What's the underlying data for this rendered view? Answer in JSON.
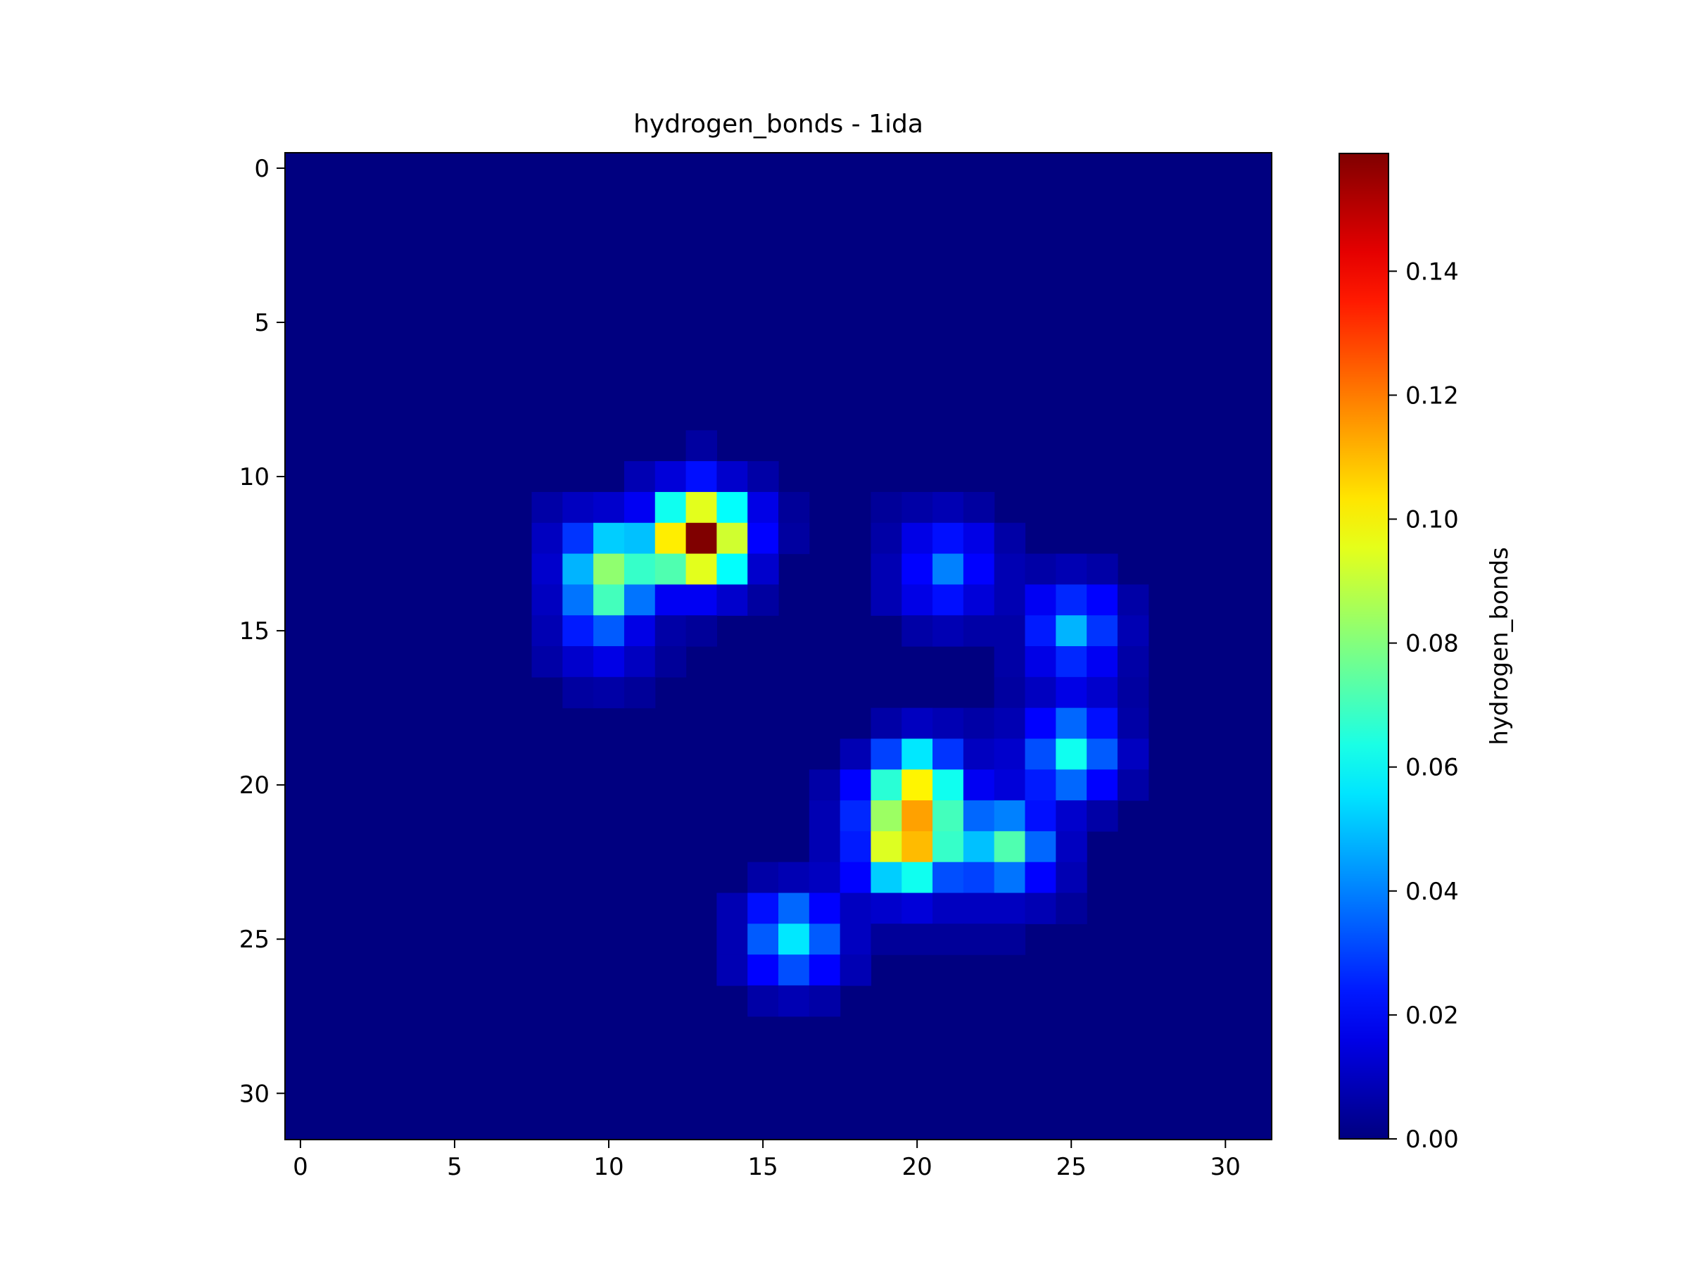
{
  "chart_data": {
    "type": "heatmap",
    "title": "hydrogen_bonds - 1ida",
    "xlabel": "",
    "ylabel": "",
    "colorbar_label": "hydrogen_bonds",
    "colormap": "jet",
    "grid": false,
    "y_axis_inverted": true,
    "x_ticks": [
      "0",
      "5",
      "10",
      "15",
      "20",
      "25",
      "30"
    ],
    "y_ticks": [
      "0",
      "5",
      "10",
      "15",
      "20",
      "25",
      "30"
    ],
    "colorbar_ticks": [
      "0.00",
      "0.02",
      "0.04",
      "0.06",
      "0.08",
      "0.10",
      "0.12",
      "0.14"
    ],
    "value_range": [
      0,
      0.159
    ],
    "n_rows": 32,
    "n_cols": 32,
    "background_value": 0.0,
    "cells": [
      [
        9,
        13,
        0.005
      ],
      [
        10,
        12,
        0.004
      ],
      [
        10,
        13,
        0.006
      ],
      [
        10,
        14,
        0.004
      ],
      [
        10,
        11,
        0.008
      ],
      [
        10,
        12,
        0.014
      ],
      [
        10,
        13,
        0.022
      ],
      [
        10,
        14,
        0.012
      ],
      [
        10,
        15,
        0.006
      ],
      [
        11,
        8,
        0.006
      ],
      [
        11,
        9,
        0.01
      ],
      [
        11,
        10,
        0.012
      ],
      [
        11,
        11,
        0.018
      ],
      [
        11,
        12,
        0.062
      ],
      [
        11,
        13,
        0.095
      ],
      [
        11,
        14,
        0.06
      ],
      [
        11,
        15,
        0.016
      ],
      [
        11,
        16,
        0.004
      ],
      [
        12,
        8,
        0.01
      ],
      [
        12,
        9,
        0.028
      ],
      [
        12,
        10,
        0.052
      ],
      [
        12,
        11,
        0.05
      ],
      [
        12,
        12,
        0.102
      ],
      [
        12,
        13,
        0.159
      ],
      [
        12,
        14,
        0.092
      ],
      [
        12,
        15,
        0.02
      ],
      [
        12,
        16,
        0.005
      ],
      [
        13,
        8,
        0.012
      ],
      [
        13,
        9,
        0.048
      ],
      [
        13,
        10,
        0.082
      ],
      [
        13,
        11,
        0.068
      ],
      [
        13,
        12,
        0.072
      ],
      [
        13,
        13,
        0.095
      ],
      [
        13,
        14,
        0.06
      ],
      [
        13,
        15,
        0.012
      ],
      [
        14,
        8,
        0.01
      ],
      [
        14,
        9,
        0.038
      ],
      [
        14,
        10,
        0.07
      ],
      [
        14,
        11,
        0.038
      ],
      [
        14,
        12,
        0.018
      ],
      [
        14,
        13,
        0.018
      ],
      [
        14,
        14,
        0.012
      ],
      [
        14,
        15,
        0.005
      ],
      [
        15,
        8,
        0.008
      ],
      [
        15,
        9,
        0.024
      ],
      [
        15,
        10,
        0.034
      ],
      [
        15,
        11,
        0.016
      ],
      [
        15,
        12,
        0.006
      ],
      [
        15,
        13,
        0.004
      ],
      [
        16,
        8,
        0.006
      ],
      [
        16,
        9,
        0.012
      ],
      [
        16,
        10,
        0.016
      ],
      [
        16,
        11,
        0.01
      ],
      [
        16,
        12,
        0.004
      ],
      [
        17,
        9,
        0.005
      ],
      [
        17,
        10,
        0.006
      ],
      [
        17,
        11,
        0.004
      ],
      [
        11,
        19,
        0.004
      ],
      [
        11,
        20,
        0.006
      ],
      [
        11,
        21,
        0.008
      ],
      [
        11,
        22,
        0.005
      ],
      [
        12,
        19,
        0.006
      ],
      [
        12,
        20,
        0.016
      ],
      [
        12,
        21,
        0.022
      ],
      [
        12,
        22,
        0.016
      ],
      [
        12,
        23,
        0.006
      ],
      [
        13,
        19,
        0.008
      ],
      [
        13,
        20,
        0.02
      ],
      [
        13,
        21,
        0.04
      ],
      [
        13,
        22,
        0.02
      ],
      [
        13,
        23,
        0.008
      ],
      [
        13,
        24,
        0.006
      ],
      [
        13,
        25,
        0.008
      ],
      [
        13,
        26,
        0.006
      ],
      [
        14,
        19,
        0.008
      ],
      [
        14,
        20,
        0.016
      ],
      [
        14,
        21,
        0.022
      ],
      [
        14,
        22,
        0.014
      ],
      [
        14,
        23,
        0.008
      ],
      [
        14,
        24,
        0.018
      ],
      [
        14,
        25,
        0.026
      ],
      [
        14,
        26,
        0.02
      ],
      [
        14,
        27,
        0.006
      ],
      [
        15,
        20,
        0.006
      ],
      [
        15,
        21,
        0.008
      ],
      [
        15,
        22,
        0.006
      ],
      [
        15,
        23,
        0.006
      ],
      [
        15,
        24,
        0.024
      ],
      [
        15,
        25,
        0.048
      ],
      [
        15,
        26,
        0.028
      ],
      [
        15,
        27,
        0.008
      ],
      [
        16,
        23,
        0.006
      ],
      [
        16,
        24,
        0.016
      ],
      [
        16,
        25,
        0.026
      ],
      [
        16,
        26,
        0.018
      ],
      [
        16,
        27,
        0.006
      ],
      [
        17,
        23,
        0.005
      ],
      [
        17,
        24,
        0.01
      ],
      [
        17,
        25,
        0.016
      ],
      [
        17,
        26,
        0.012
      ],
      [
        17,
        27,
        0.005
      ],
      [
        18,
        19,
        0.006
      ],
      [
        18,
        20,
        0.01
      ],
      [
        18,
        21,
        0.008
      ],
      [
        18,
        22,
        0.006
      ],
      [
        18,
        23,
        0.008
      ],
      [
        18,
        24,
        0.02
      ],
      [
        18,
        25,
        0.036
      ],
      [
        18,
        26,
        0.022
      ],
      [
        18,
        27,
        0.006
      ],
      [
        19,
        18,
        0.008
      ],
      [
        19,
        19,
        0.03
      ],
      [
        19,
        20,
        0.056
      ],
      [
        19,
        21,
        0.028
      ],
      [
        19,
        22,
        0.01
      ],
      [
        19,
        23,
        0.012
      ],
      [
        19,
        24,
        0.032
      ],
      [
        19,
        25,
        0.062
      ],
      [
        19,
        26,
        0.034
      ],
      [
        19,
        27,
        0.01
      ],
      [
        20,
        17,
        0.006
      ],
      [
        20,
        18,
        0.02
      ],
      [
        20,
        19,
        0.066
      ],
      [
        20,
        20,
        0.101
      ],
      [
        20,
        21,
        0.062
      ],
      [
        20,
        22,
        0.018
      ],
      [
        20,
        23,
        0.014
      ],
      [
        20,
        24,
        0.024
      ],
      [
        20,
        25,
        0.036
      ],
      [
        20,
        26,
        0.02
      ],
      [
        20,
        27,
        0.006
      ],
      [
        21,
        17,
        0.008
      ],
      [
        21,
        18,
        0.026
      ],
      [
        21,
        19,
        0.084
      ],
      [
        21,
        20,
        0.114
      ],
      [
        21,
        21,
        0.07
      ],
      [
        21,
        22,
        0.036
      ],
      [
        21,
        23,
        0.04
      ],
      [
        21,
        24,
        0.022
      ],
      [
        21,
        25,
        0.012
      ],
      [
        21,
        26,
        0.006
      ],
      [
        22,
        17,
        0.008
      ],
      [
        22,
        18,
        0.024
      ],
      [
        22,
        19,
        0.094
      ],
      [
        22,
        20,
        0.11
      ],
      [
        22,
        21,
        0.068
      ],
      [
        22,
        22,
        0.05
      ],
      [
        22,
        23,
        0.072
      ],
      [
        22,
        24,
        0.036
      ],
      [
        22,
        25,
        0.01
      ],
      [
        23,
        15,
        0.006
      ],
      [
        23,
        16,
        0.008
      ],
      [
        23,
        17,
        0.01
      ],
      [
        23,
        18,
        0.02
      ],
      [
        23,
        19,
        0.052
      ],
      [
        23,
        20,
        0.062
      ],
      [
        23,
        21,
        0.032
      ],
      [
        23,
        22,
        0.03
      ],
      [
        23,
        23,
        0.038
      ],
      [
        23,
        24,
        0.02
      ],
      [
        23,
        25,
        0.008
      ],
      [
        24,
        14,
        0.008
      ],
      [
        24,
        15,
        0.022
      ],
      [
        24,
        16,
        0.036
      ],
      [
        24,
        17,
        0.02
      ],
      [
        24,
        18,
        0.01
      ],
      [
        24,
        19,
        0.012
      ],
      [
        24,
        20,
        0.014
      ],
      [
        24,
        21,
        0.01
      ],
      [
        24,
        22,
        0.01
      ],
      [
        24,
        23,
        0.01
      ],
      [
        24,
        24,
        0.008
      ],
      [
        24,
        25,
        0.004
      ],
      [
        25,
        14,
        0.008
      ],
      [
        25,
        15,
        0.034
      ],
      [
        25,
        16,
        0.056
      ],
      [
        25,
        17,
        0.034
      ],
      [
        25,
        18,
        0.01
      ],
      [
        25,
        19,
        0.004
      ],
      [
        25,
        20,
        0.004
      ],
      [
        25,
        21,
        0.004
      ],
      [
        25,
        22,
        0.004
      ],
      [
        25,
        23,
        0.004
      ],
      [
        26,
        14,
        0.008
      ],
      [
        26,
        15,
        0.02
      ],
      [
        26,
        16,
        0.032
      ],
      [
        26,
        17,
        0.02
      ],
      [
        26,
        18,
        0.008
      ],
      [
        27,
        15,
        0.006
      ],
      [
        27,
        16,
        0.008
      ],
      [
        27,
        17,
        0.006
      ]
    ]
  }
}
